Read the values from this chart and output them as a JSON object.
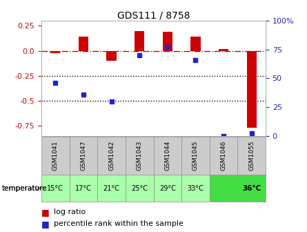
{
  "title": "GDS111 / 8758",
  "samples": [
    "GSM1041",
    "GSM1047",
    "GSM1042",
    "GSM1043",
    "GSM1044",
    "GSM1045",
    "GSM1046",
    "GSM1055"
  ],
  "temp_labels": [
    "15°C",
    "17°C",
    "21°C",
    "25°C",
    "29°C",
    "33°C",
    "36°C"
  ],
  "log_ratio": [
    -0.02,
    0.14,
    -0.1,
    0.2,
    0.19,
    0.14,
    0.02,
    -0.77
  ],
  "percentile_rank": [
    46,
    36,
    30,
    70,
    77,
    66,
    0,
    2
  ],
  "ylim_left": [
    -0.85,
    0.3
  ],
  "ylim_right": [
    0,
    100
  ],
  "yticks_left": [
    0.25,
    0.0,
    -0.25,
    -0.5,
    -0.75
  ],
  "yticks_right": [
    100,
    75,
    50,
    25,
    0
  ],
  "bg_color": "#ffffff",
  "bar_color": "#cc0000",
  "dot_color": "#2222cc",
  "hline_color": "#cc0000",
  "dot_line_color": "#000000",
  "sample_bg": "#cccccc",
  "temp_color_light": "#aaffaa",
  "temp_color_dark": "#44dd44",
  "grid_color": "#888888",
  "bar_width": 0.35
}
